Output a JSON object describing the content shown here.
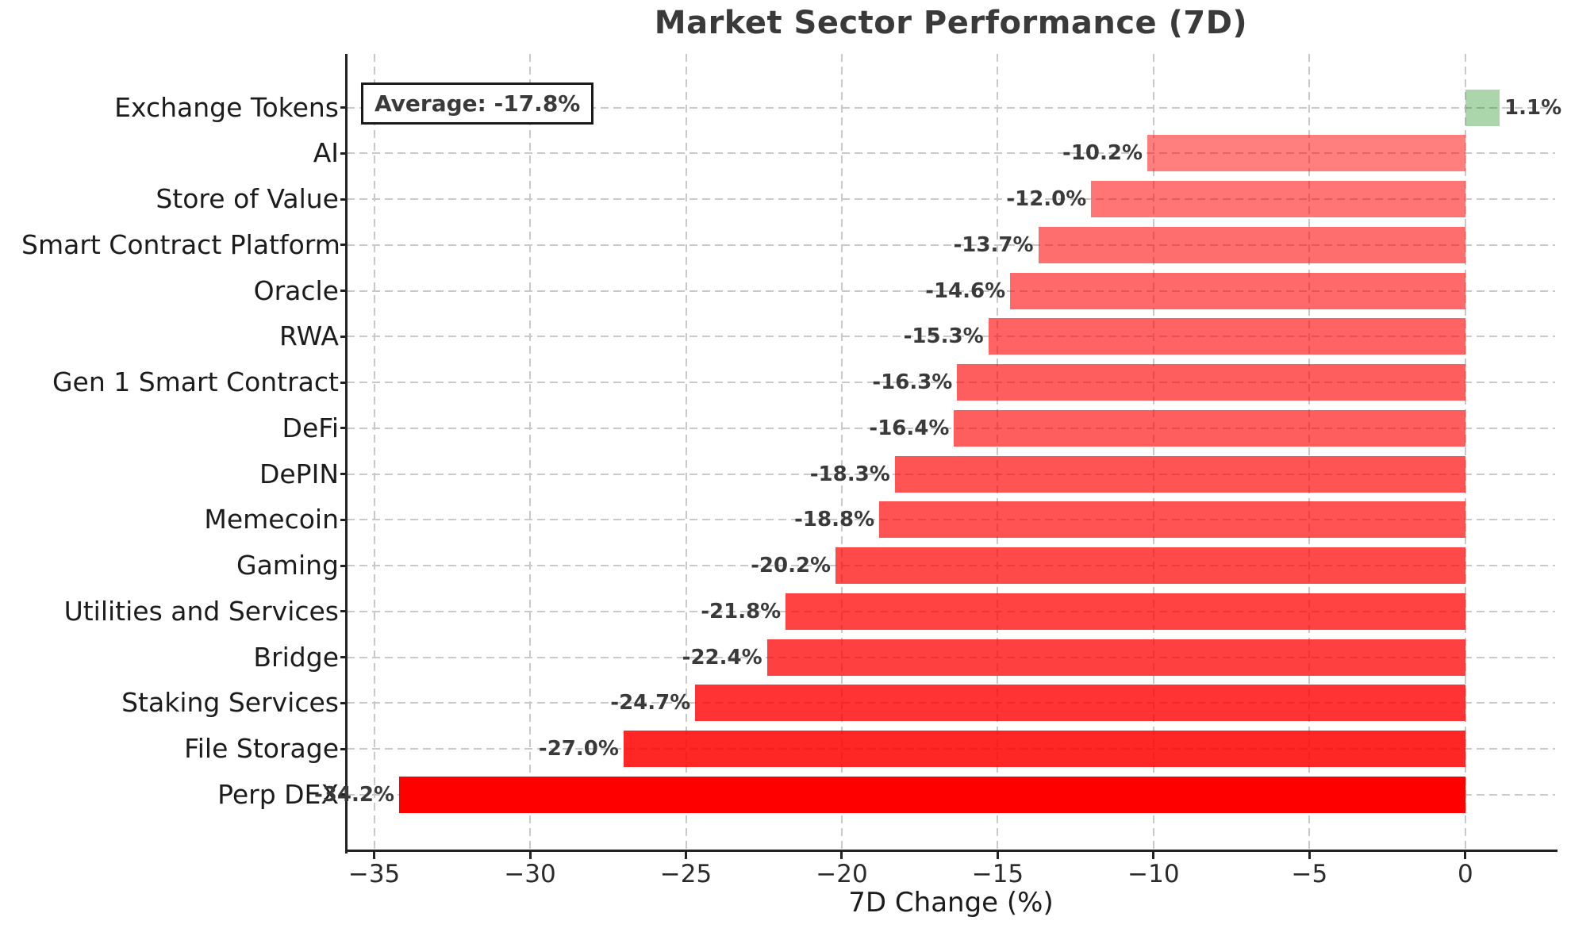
{
  "title": "Market Sector Performance (7D)",
  "annotation": {
    "average_label": "Average: -17.8%",
    "average_value": -17.8
  },
  "chart_data": {
    "type": "bar",
    "orientation": "horizontal",
    "title": "Market Sector Performance (7D)",
    "xlabel": "7D Change (%)",
    "ylabel": "",
    "grid": "dashed",
    "legend": "none",
    "xlim": [
      -35.88,
      2.88
    ],
    "xticks": [
      -35,
      -30,
      -25,
      -20,
      -15,
      -10,
      -5,
      0
    ],
    "xtick_labels": [
      "−35",
      "−30",
      "−25",
      "−20",
      "−15",
      "−10",
      "−5",
      "0"
    ],
    "categories": [
      "Exchange Tokens",
      "AI",
      "Store of Value",
      "Smart Contract Platform",
      "Oracle",
      "RWA",
      "Gen 1 Smart Contract",
      "DeFi",
      "DePIN",
      "Memecoin",
      "Gaming",
      "Utilities and Services",
      "Bridge",
      "Staking Services",
      "File Storage",
      "Perp DEX"
    ],
    "values": [
      1.1,
      -10.2,
      -12.0,
      -13.7,
      -14.6,
      -15.3,
      -16.3,
      -16.4,
      -18.3,
      -18.8,
      -20.2,
      -21.8,
      -22.4,
      -24.7,
      -27.0,
      -34.2
    ],
    "value_labels": [
      "1.1%",
      "-10.2%",
      "-12.0%",
      "-13.7%",
      "-14.6%",
      "-15.3%",
      "-16.3%",
      "-16.4%",
      "-18.3%",
      "-18.8%",
      "-20.2%",
      "-21.8%",
      "-22.4%",
      "-24.7%",
      "-27.0%",
      "-34.2%"
    ],
    "bar_colors": [
      "rgba(0,128,0,0.33)",
      "rgba(255,0,0,0.50)",
      "rgba(255,0,0,0.54)",
      "rgba(255,0,0,0.57)",
      "rgba(255,0,0,0.59)",
      "rgba(255,0,0,0.61)",
      "rgba(255,0,0,0.63)",
      "rgba(255,0,0,0.63)",
      "rgba(255,0,0,0.67)",
      "rgba(255,0,0,0.68)",
      "rgba(255,0,0,0.71)",
      "rgba(255,0,0,0.74)",
      "rgba(255,0,0,0.75)",
      "rgba(255,0,0,0.80)",
      "rgba(255,0,0,0.85)",
      "rgba(255,0,0,1.0)"
    ],
    "colors": {
      "positive": "#abd5ab",
      "negative_base": "#ff0000",
      "grid": "#c9c9c9",
      "spine": "#222222",
      "tick_text": "#2b2b2b",
      "category_text": "#1c1c1c",
      "value_text": "#3a3a3a",
      "title_text": "#3a3a3a"
    }
  }
}
